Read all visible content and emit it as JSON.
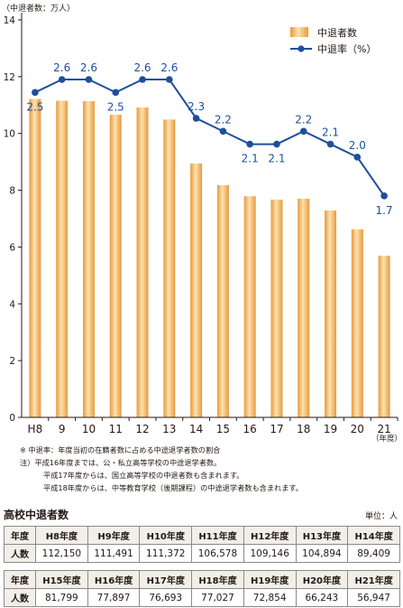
{
  "chart_data": {
    "type": "bar+line",
    "y_unit_label": "（中退者数：万人）",
    "x_unit_label": "（年度）",
    "categories": [
      "H8",
      "9",
      "10",
      "11",
      "12",
      "13",
      "14",
      "15",
      "16",
      "17",
      "18",
      "19",
      "20",
      "21"
    ],
    "ylim": [
      0,
      14
    ],
    "yticks": [
      0,
      2,
      4,
      6,
      8,
      10,
      12,
      14
    ],
    "series": [
      {
        "name": "中退者数",
        "kind": "bar",
        "color": "#f0b25b",
        "values": [
          11.215,
          11.1491,
          11.1372,
          10.6578,
          10.9146,
          10.4894,
          8.9409,
          8.1799,
          7.7897,
          7.6693,
          7.7027,
          7.2854,
          6.6243,
          5.6947
        ]
      },
      {
        "name": "中退率（%）",
        "kind": "line",
        "color": "#1d4f9c",
        "values": [
          2.5,
          2.6,
          2.6,
          2.5,
          2.6,
          2.6,
          2.3,
          2.2,
          2.1,
          2.1,
          2.2,
          2.1,
          2.0,
          1.7
        ],
        "labels": [
          "2.5",
          "2.6",
          "2.6",
          "2.5",
          "2.6",
          "2.6",
          "2.3",
          "2.2",
          "2.1",
          "2.1",
          "2.2",
          "2.1",
          "2.0",
          "1.7"
        ]
      }
    ],
    "legend_position": "top-right",
    "grid": false
  },
  "notes": [
    "※ 中退率：年度当初の在籍者数に占める中途退学者数の割合",
    "注）平成16年度までは、公・私立高等学校の中途退学者数。",
    "平成17年度からは、国立高等学校の中退者数も含まれます。",
    "平成18年度からは、中等教育学校（後期課程）の中途退学者数も含まれます。"
  ],
  "table": {
    "title": "高校中退者数",
    "unit": "単位：人",
    "year_header": "年度",
    "count_header": "人数",
    "rows": [
      {
        "years": [
          "H8年度",
          "H9年度",
          "H10年度",
          "H11年度",
          "H12年度",
          "H13年度",
          "H14年度"
        ],
        "counts": [
          "112,150",
          "111,491",
          "111,372",
          "106,578",
          "109,146",
          "104,894",
          "89,409"
        ]
      },
      {
        "years": [
          "H15年度",
          "H16年度",
          "H17年度",
          "H18年度",
          "H19年度",
          "H20年度",
          "H21年度"
        ],
        "counts": [
          "81,799",
          "77,897",
          "76,693",
          "77,027",
          "72,854",
          "66,243",
          "56,947"
        ]
      }
    ]
  }
}
